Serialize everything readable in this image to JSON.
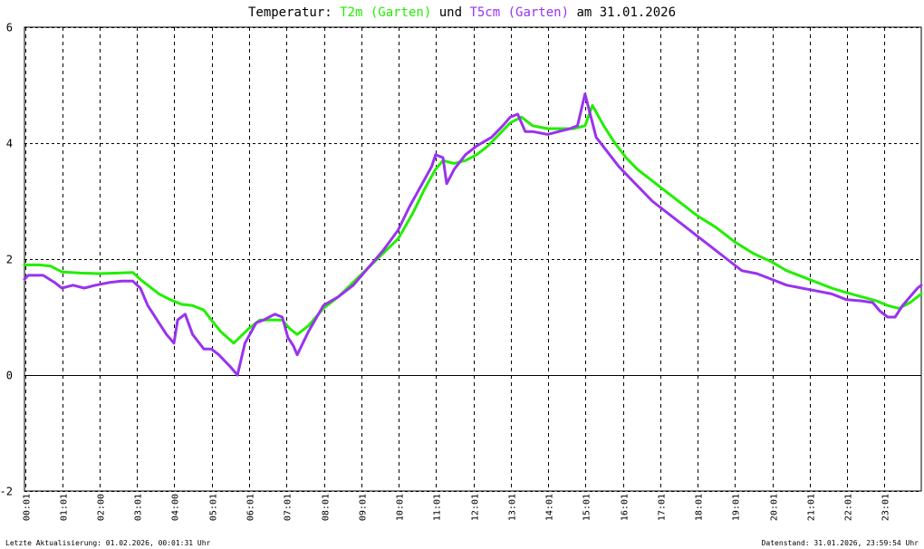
{
  "title": {
    "prefix": "Temperatur: ",
    "series1": "T2m (Garten)",
    "middle": " und ",
    "series2": "T5cm (Garten)",
    "suffix": " am 31.01.2026"
  },
  "footer": {
    "left": "Letzte Aktualisierung: 01.02.2026, 00:01:31 Uhr",
    "right": "Datenstand: 31.01.2026, 23:59:54 Uhr"
  },
  "colors": {
    "t2m": "#22ee00",
    "t5cm": "#9933ee",
    "background": "#ffffff",
    "grid": "#000000"
  },
  "chart_data": {
    "type": "line",
    "title": "Temperatur: T2m (Garten) und T5cm (Garten) am 31.01.2026",
    "xlim": [
      0.0,
      24.0
    ],
    "ylim": [
      -2,
      6
    ],
    "yticks": [
      -2,
      0,
      2,
      4,
      6
    ],
    "grid": true,
    "xticks": [
      {
        "x": 0.017,
        "label": "00:01"
      },
      {
        "x": 1.017,
        "label": "01:01"
      },
      {
        "x": 2.0,
        "label": "02:00"
      },
      {
        "x": 3.017,
        "label": "03:01"
      },
      {
        "x": 4.0,
        "label": "04:00"
      },
      {
        "x": 5.017,
        "label": "05:01"
      },
      {
        "x": 6.017,
        "label": "06:01"
      },
      {
        "x": 7.017,
        "label": "07:01"
      },
      {
        "x": 8.017,
        "label": "08:01"
      },
      {
        "x": 9.017,
        "label": "09:01"
      },
      {
        "x": 10.017,
        "label": "10:01"
      },
      {
        "x": 11.017,
        "label": "11:01"
      },
      {
        "x": 12.017,
        "label": "12:01"
      },
      {
        "x": 13.017,
        "label": "13:01"
      },
      {
        "x": 14.017,
        "label": "14:01"
      },
      {
        "x": 15.017,
        "label": "15:01"
      },
      {
        "x": 16.017,
        "label": "16:01"
      },
      {
        "x": 17.017,
        "label": "17:01"
      },
      {
        "x": 18.017,
        "label": "18:01"
      },
      {
        "x": 19.017,
        "label": "19:01"
      },
      {
        "x": 20.017,
        "label": "20:01"
      },
      {
        "x": 21.017,
        "label": "21:01"
      },
      {
        "x": 22.017,
        "label": "22:01"
      },
      {
        "x": 23.017,
        "label": "23:01"
      }
    ],
    "series": [
      {
        "name": "T2m (Garten)",
        "x": [
          0.0,
          0.4,
          0.7,
          1.0,
          1.5,
          2.0,
          2.5,
          2.9,
          3.1,
          3.3,
          3.6,
          3.9,
          4.2,
          4.5,
          4.8,
          5.0,
          5.25,
          5.6,
          6.0,
          6.3,
          6.6,
          6.9,
          7.1,
          7.3,
          7.6,
          8.0,
          8.4,
          8.8,
          9.2,
          9.6,
          10.0,
          10.4,
          10.7,
          11.0,
          11.2,
          11.5,
          11.8,
          12.1,
          12.4,
          12.7,
          13.0,
          13.3,
          13.6,
          14.0,
          14.3,
          14.7,
          15.0,
          15.2,
          15.5,
          15.8,
          16.1,
          16.4,
          16.8,
          17.2,
          17.6,
          18.0,
          18.5,
          19.0,
          19.5,
          20.0,
          20.4,
          20.8,
          21.2,
          21.6,
          22.0,
          22.4,
          22.8,
          23.1,
          23.4,
          23.7,
          24.0
        ],
        "y": [
          1.9,
          1.9,
          1.88,
          1.78,
          1.76,
          1.75,
          1.76,
          1.77,
          1.65,
          1.55,
          1.4,
          1.3,
          1.22,
          1.2,
          1.12,
          0.95,
          0.75,
          0.55,
          0.8,
          0.95,
          0.95,
          0.95,
          0.8,
          0.7,
          0.85,
          1.15,
          1.35,
          1.6,
          1.85,
          2.1,
          2.35,
          2.8,
          3.2,
          3.55,
          3.7,
          3.65,
          3.7,
          3.8,
          3.95,
          4.15,
          4.35,
          4.45,
          4.3,
          4.25,
          4.25,
          4.25,
          4.3,
          4.65,
          4.3,
          4.0,
          3.75,
          3.55,
          3.35,
          3.15,
          2.95,
          2.75,
          2.55,
          2.3,
          2.1,
          1.95,
          1.8,
          1.7,
          1.6,
          1.5,
          1.42,
          1.35,
          1.28,
          1.2,
          1.15,
          1.25,
          1.4
        ]
      },
      {
        "name": "T5cm (Garten)",
        "x": [
          0.0,
          0.1,
          0.5,
          0.8,
          1.0,
          1.3,
          1.6,
          1.9,
          2.3,
          2.6,
          2.9,
          3.1,
          3.3,
          3.6,
          3.8,
          4.0,
          4.1,
          4.3,
          4.5,
          4.8,
          5.0,
          5.2,
          5.35,
          5.5,
          5.7,
          5.9,
          6.2,
          6.4,
          6.7,
          6.9,
          7.05,
          7.2,
          7.3,
          7.6,
          8.0,
          8.4,
          8.8,
          9.2,
          9.6,
          10.0,
          10.3,
          10.6,
          10.9,
          11.0,
          11.2,
          11.3,
          11.5,
          11.8,
          12.1,
          12.5,
          12.8,
          13.0,
          13.2,
          13.4,
          13.6,
          14.0,
          14.3,
          14.6,
          14.8,
          15.0,
          15.1,
          15.3,
          15.6,
          15.9,
          16.2,
          16.5,
          16.8,
          17.2,
          17.6,
          18.0,
          18.4,
          18.8,
          19.2,
          19.6,
          20.0,
          20.4,
          20.8,
          21.2,
          21.6,
          22.0,
          22.4,
          22.7,
          22.9,
          23.1,
          23.3,
          23.5,
          23.7,
          23.9,
          24.0
        ],
        "y": [
          1.65,
          1.72,
          1.72,
          1.6,
          1.5,
          1.55,
          1.5,
          1.55,
          1.6,
          1.62,
          1.62,
          1.5,
          1.2,
          0.9,
          0.7,
          0.55,
          0.95,
          1.05,
          0.7,
          0.45,
          0.45,
          0.35,
          0.25,
          0.15,
          0.0,
          0.55,
          0.9,
          0.95,
          1.05,
          1.0,
          0.65,
          0.5,
          0.35,
          0.75,
          1.2,
          1.35,
          1.55,
          1.85,
          2.15,
          2.5,
          2.9,
          3.25,
          3.6,
          3.8,
          3.75,
          3.3,
          3.55,
          3.8,
          3.95,
          4.1,
          4.3,
          4.45,
          4.5,
          4.2,
          4.2,
          4.15,
          4.2,
          4.25,
          4.3,
          4.85,
          4.6,
          4.1,
          3.85,
          3.6,
          3.4,
          3.2,
          3.0,
          2.8,
          2.6,
          2.4,
          2.2,
          2.0,
          1.8,
          1.75,
          1.65,
          1.55,
          1.5,
          1.45,
          1.4,
          1.3,
          1.28,
          1.25,
          1.1,
          1.0,
          1.0,
          1.2,
          1.35,
          1.5,
          1.55
        ]
      }
    ]
  }
}
